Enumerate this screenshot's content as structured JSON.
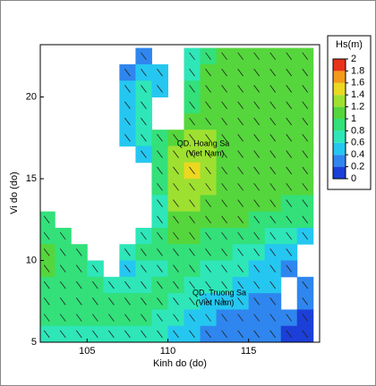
{
  "chart_data": {
    "type": "heatmap",
    "xlabel": "Kinh do (do)",
    "ylabel": "Vi do (do)",
    "xlim": [
      102.1,
      119.4
    ],
    "ylim": [
      5,
      23.2
    ],
    "xticks": [
      105,
      110,
      115
    ],
    "yticks": [
      5,
      10,
      15,
      20
    ],
    "x": [
      102.5,
      103.5,
      104.5,
      105.5,
      106.5,
      107.5,
      108.5,
      109.5,
      110.5,
      111.5,
      112.5,
      113.5,
      114.5,
      115.5,
      116.5,
      117.5,
      118.5
    ],
    "y": [
      22.5,
      21.5,
      20.5,
      19.5,
      18.5,
      17.5,
      16.5,
      15.5,
      14.5,
      13.5,
      12.5,
      11.5,
      10.5,
      9.5,
      8.5,
      7.5,
      6.5,
      5.5
    ],
    "z": [
      [
        null,
        null,
        null,
        null,
        null,
        null,
        0.3,
        null,
        null,
        0.6,
        0.9,
        1.0,
        1.0,
        1.0,
        1.0,
        1.0,
        1.0
      ],
      [
        null,
        null,
        null,
        null,
        null,
        0.3,
        0.5,
        0.4,
        null,
        0.7,
        1.0,
        1.0,
        1.0,
        1.0,
        1.0,
        1.0,
        1.0
      ],
      [
        null,
        null,
        null,
        null,
        null,
        0.4,
        0.7,
        0.5,
        null,
        0.8,
        1.0,
        1.0,
        1.0,
        1.0,
        1.0,
        1.0,
        1.0
      ],
      [
        null,
        null,
        null,
        null,
        null,
        0.4,
        0.7,
        null,
        null,
        0.9,
        1.1,
        1.0,
        1.0,
        1.0,
        1.0,
        1.0,
        1.0
      ],
      [
        null,
        null,
        null,
        null,
        null,
        0.5,
        0.6,
        null,
        null,
        1.0,
        1.1,
        1.1,
        1.0,
        1.0,
        1.0,
        1.0,
        1.0
      ],
      [
        null,
        null,
        null,
        null,
        null,
        0.4,
        0.6,
        0.8,
        1.1,
        1.2,
        1.2,
        1.1,
        1.0,
        1.0,
        1.0,
        1.0,
        1.0
      ],
      [
        null,
        null,
        null,
        null,
        null,
        null,
        0.5,
        0.9,
        1.2,
        1.3,
        1.2,
        1.1,
        1.0,
        1.0,
        1.0,
        1.0,
        1.0
      ],
      [
        null,
        null,
        null,
        null,
        null,
        null,
        null,
        0.9,
        1.3,
        1.4,
        1.3,
        1.1,
        1.0,
        1.0,
        1.0,
        1.0,
        1.0
      ],
      [
        null,
        null,
        null,
        null,
        null,
        null,
        null,
        0.8,
        1.3,
        1.3,
        1.2,
        1.1,
        1.0,
        1.0,
        1.0,
        1.0,
        1.0
      ],
      [
        null,
        null,
        null,
        null,
        null,
        null,
        null,
        0.7,
        1.2,
        1.2,
        1.1,
        1.1,
        1.0,
        1.0,
        1.0,
        0.9,
        0.9
      ],
      [
        0.9,
        null,
        null,
        null,
        null,
        null,
        null,
        0.7,
        1.1,
        1.1,
        1.0,
        1.0,
        1.0,
        0.9,
        0.9,
        0.9,
        0.8
      ],
      [
        0.9,
        0.8,
        null,
        null,
        null,
        null,
        0.6,
        0.8,
        1.0,
        1.0,
        0.9,
        0.9,
        0.9,
        0.8,
        0.7,
        0.6,
        0.5
      ],
      [
        1.0,
        0.9,
        0.8,
        null,
        null,
        0.6,
        0.8,
        0.9,
        0.9,
        0.9,
        0.8,
        0.8,
        0.7,
        0.6,
        0.5,
        0.5,
        null
      ],
      [
        1.0,
        0.9,
        0.9,
        0.7,
        null,
        0.5,
        0.6,
        0.7,
        0.8,
        0.8,
        0.7,
        0.7,
        0.6,
        0.5,
        0.4,
        0.3,
        null
      ],
      [
        0.9,
        0.9,
        0.9,
        0.8,
        0.6,
        0.6,
        0.7,
        0.8,
        0.8,
        0.7,
        0.6,
        0.6,
        0.5,
        0.4,
        0.4,
        null,
        0.3
      ],
      [
        0.9,
        0.9,
        0.9,
        0.9,
        0.8,
        0.8,
        0.8,
        0.8,
        0.7,
        0.6,
        0.5,
        0.4,
        0.4,
        0.3,
        0.2,
        null,
        0.2
      ],
      [
        0.8,
        0.8,
        0.8,
        0.8,
        0.8,
        0.8,
        0.8,
        0.7,
        0.6,
        0.5,
        0.4,
        0.3,
        0.3,
        0.2,
        0.2,
        0.2,
        0.1
      ],
      [
        0.7,
        0.7,
        0.7,
        0.7,
        0.7,
        0.7,
        0.7,
        0.6,
        0.5,
        0.4,
        0.3,
        0.3,
        0.2,
        0.2,
        0.2,
        0.1,
        0.1
      ]
    ],
    "colorbar": {
      "title": "Hs(m)",
      "ticks": [
        0,
        0.2,
        0.4,
        0.6,
        0.8,
        1,
        1.2,
        1.4,
        1.6,
        1.8,
        2
      ],
      "colors": [
        "#1c3fd8",
        "#2f86ee",
        "#25c7f0",
        "#2ee6b8",
        "#33e07a",
        "#55d63c",
        "#9ee030",
        "#ecd820",
        "#f39a1c",
        "#e8321a"
      ]
    },
    "annotations": [
      "QD. Hoang Sa",
      "(Viet Nam)",
      "QD. Truong Sa",
      "(Viet Nam)"
    ]
  }
}
